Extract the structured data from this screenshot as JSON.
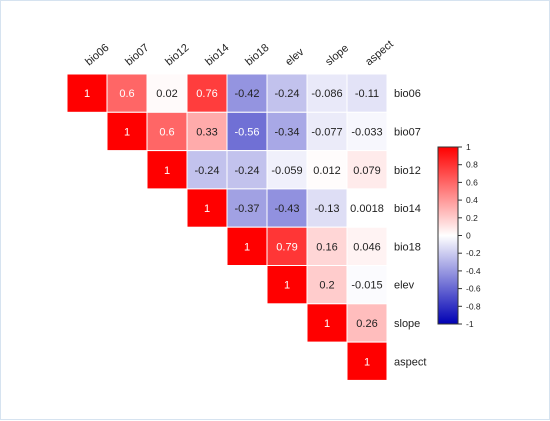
{
  "chart_data": {
    "type": "heatmap",
    "variables": [
      "bio06",
      "bio07",
      "bio12",
      "bio14",
      "bio18",
      "elev",
      "slope",
      "aspect"
    ],
    "matrix_upper": [
      [
        "1",
        "0.6",
        "0.02",
        "0.76",
        "-0.42",
        "-0.24",
        "-0.086",
        "-0.11"
      ],
      [
        "1",
        "0.6",
        "0.33",
        "-0.56",
        "-0.34",
        "-0.077",
        "-0.033"
      ],
      [
        "1",
        "-0.24",
        "-0.24",
        "-0.059",
        "0.012",
        "0.079"
      ],
      [
        "1",
        "-0.37",
        "-0.43",
        "-0.13",
        "0.0018"
      ],
      [
        "1",
        "0.79",
        "0.16",
        "0.046"
      ],
      [
        "1",
        "0.2",
        "-0.015"
      ],
      [
        "1",
        "0.26"
      ],
      [
        "1"
      ]
    ],
    "colorbar": {
      "range": [
        -1,
        1
      ],
      "ticks": [
        "1",
        "0.8",
        "0.6",
        "0.4",
        "0.2",
        "0",
        "-0.2",
        "-0.4",
        "-0.6",
        "-0.8",
        "-1"
      ],
      "colors": {
        "high": "#ff0000",
        "mid": "#ffffff",
        "low": "#0000b4"
      }
    },
    "grid": false,
    "legend_placement": "right"
  }
}
